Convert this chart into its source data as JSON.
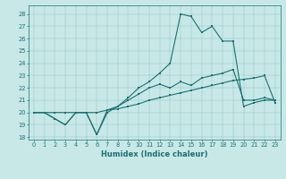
{
  "xlabel": "Humidex (Indice chaleur)",
  "bg_color": "#c8e8e8",
  "line_color": "#1a7070",
  "xlim": [
    -0.5,
    23.5
  ],
  "ylim": [
    17.8,
    28.7
  ],
  "xticks": [
    0,
    1,
    2,
    3,
    4,
    5,
    6,
    7,
    8,
    9,
    10,
    11,
    12,
    13,
    14,
    15,
    16,
    17,
    18,
    19,
    20,
    21,
    22,
    23
  ],
  "yticks": [
    18,
    19,
    20,
    21,
    22,
    23,
    24,
    25,
    26,
    27,
    28
  ],
  "line1": {
    "x": [
      0,
      1,
      2,
      3,
      4,
      5,
      6,
      7,
      8,
      9,
      10,
      11,
      12,
      13,
      14,
      15,
      16,
      17,
      18,
      19,
      20,
      21,
      22,
      23
    ],
    "y": [
      20.0,
      20.0,
      20.0,
      20.0,
      20.0,
      20.0,
      20.0,
      20.2,
      20.3,
      20.5,
      20.7,
      21.0,
      21.2,
      21.4,
      21.6,
      21.8,
      22.0,
      22.2,
      22.4,
      22.6,
      22.7,
      22.8,
      23.0,
      20.8
    ]
  },
  "line2": {
    "x": [
      0,
      1,
      2,
      3,
      4,
      5,
      6,
      7,
      8,
      9,
      10,
      11,
      12,
      13,
      14,
      15,
      16,
      17,
      18,
      19,
      20,
      21,
      22,
      23
    ],
    "y": [
      20.0,
      20.0,
      19.5,
      19.0,
      20.0,
      20.0,
      18.2,
      20.2,
      20.5,
      21.0,
      21.5,
      22.0,
      22.3,
      22.0,
      22.5,
      22.2,
      22.8,
      23.0,
      23.2,
      23.5,
      21.0,
      21.0,
      21.2,
      21.0
    ]
  },
  "line3": {
    "x": [
      0,
      1,
      2,
      3,
      4,
      5,
      6,
      7,
      8,
      9,
      10,
      11,
      12,
      13,
      14,
      15,
      16,
      17,
      18,
      19,
      20,
      21,
      22,
      23
    ],
    "y": [
      20.0,
      20.0,
      19.5,
      19.0,
      20.0,
      20.0,
      18.2,
      20.0,
      20.5,
      21.2,
      22.0,
      22.5,
      23.2,
      24.0,
      28.0,
      27.8,
      26.5,
      27.0,
      25.8,
      25.8,
      20.5,
      20.8,
      21.0,
      21.0
    ]
  }
}
